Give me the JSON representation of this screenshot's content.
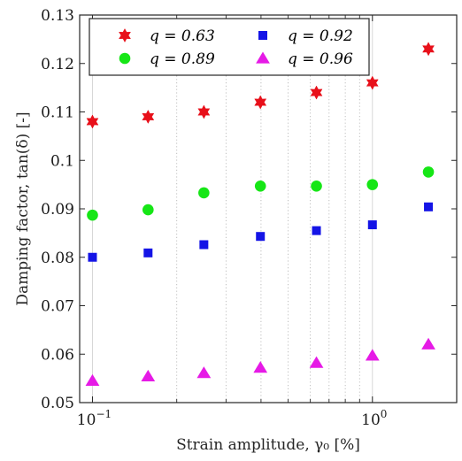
{
  "chart_data": {
    "type": "scatter",
    "xlabel": "Strain amplitude, γ₀ [%]",
    "ylabel": "Damping factor, tan(δ) [-]",
    "xscale": "log",
    "xlim": [
      0.09,
      2.0
    ],
    "ylim": [
      0.05,
      0.13
    ],
    "x_ticks": [
      {
        "value": 0.1,
        "base": "10",
        "exp": "−1"
      },
      {
        "value": 1.0,
        "base": "10",
        "exp": "0"
      }
    ],
    "y_ticks": [
      "0.05",
      "0.06",
      "0.07",
      "0.08",
      "0.09",
      "0.1",
      "0.11",
      "0.12",
      "0.13"
    ],
    "grid": "x-minor-dotted",
    "legend_position": "top-left",
    "legend_columns": 2,
    "series": [
      {
        "name": "q = 0.63",
        "marker": "hexagram",
        "color": "#e8101a",
        "x": [
          0.1,
          0.158,
          0.25,
          0.398,
          0.631,
          1.0,
          1.585
        ],
        "y": [
          0.108,
          0.109,
          0.11,
          0.112,
          0.114,
          0.116,
          0.123
        ]
      },
      {
        "name": "q = 0.92",
        "marker": "square",
        "color": "#1414e6",
        "x": [
          0.1,
          0.158,
          0.25,
          0.398,
          0.631,
          1.0,
          1.585
        ],
        "y": [
          0.08,
          0.0809,
          0.0826,
          0.0843,
          0.0855,
          0.0867,
          0.0904
        ]
      },
      {
        "name": "q = 0.89",
        "marker": "circle",
        "color": "#16e616",
        "x": [
          0.1,
          0.158,
          0.25,
          0.398,
          0.631,
          1.0,
          1.585
        ],
        "y": [
          0.0887,
          0.0898,
          0.0933,
          0.0947,
          0.0947,
          0.095,
          0.0976
        ]
      },
      {
        "name": "q = 0.96",
        "marker": "triangle",
        "color": "#e61ae6",
        "x": [
          0.1,
          0.158,
          0.25,
          0.398,
          0.631,
          1.0,
          1.585
        ],
        "y": [
          0.0545,
          0.0554,
          0.0561,
          0.0572,
          0.0582,
          0.0597,
          0.062
        ]
      }
    ]
  }
}
